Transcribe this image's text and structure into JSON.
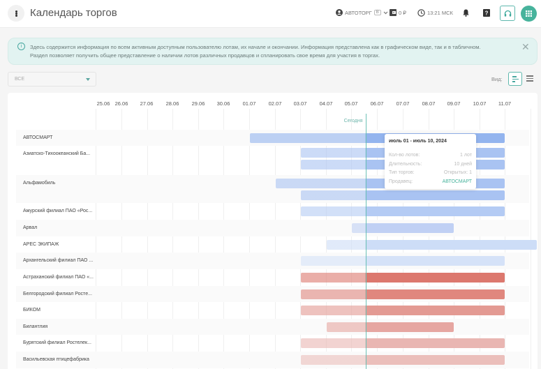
{
  "header": {
    "title": "Календарь торгов",
    "menu_icon": "more-vertical-icon",
    "account_label": "АВТОТОРГ",
    "account_badge": "В",
    "balance": "0 ₽",
    "time": "13:21 МСК",
    "icons": [
      "user-icon",
      "chevron-down-icon",
      "wallet-icon",
      "clock-icon",
      "bell-icon",
      "help-icon",
      "headset-icon",
      "apps-grid-icon"
    ]
  },
  "info": {
    "text_line1": "Здесь содержится информация по всем активным доступным пользователю лотам, их начале и окончании. Информация представлена как в графическом виде, так и в табличном.",
    "text_line2": "Раздел позволяет получить общее представление о наличии лотов различных продавцов и спланировать свое время для участия в торгах.",
    "close_icon": "close-icon"
  },
  "filter": {
    "selected": "ВСЕ"
  },
  "view": {
    "label": "Вид:",
    "options": [
      "gantt-view-icon",
      "list-view-icon"
    ]
  },
  "timeline": {
    "dates": [
      "25.06",
      "26.06",
      "27.06",
      "28.06",
      "29.06",
      "30.06",
      "01.07",
      "02.07",
      "03.07",
      "04.07",
      "05.07",
      "06.07",
      "07.07",
      "08.07",
      "09.07",
      "10.07",
      "11.07"
    ],
    "today_label": "Сегодня",
    "today": "05.07"
  },
  "rows": [
    {
      "seller": "АВТОСМАРТ",
      "bars": [
        {
          "start": "01.07",
          "end": "10.07",
          "color": "#93b4ee"
        }
      ]
    },
    {
      "seller": "Азиатско-Тихоокеанский Ба...",
      "bars": [
        {
          "start": "03.07",
          "end": "10.07",
          "color": "#a9c3f2"
        },
        {
          "start": "03.07",
          "end": "10.07",
          "color": "#a9c3f2"
        }
      ]
    },
    {
      "seller": "Альфамобиль",
      "bars": [
        {
          "start": "02.07",
          "end": "10.07",
          "color": "#a9c3f2"
        },
        {
          "start": "03.07",
          "end": "10.07",
          "color": "#a9c3f2"
        }
      ]
    },
    {
      "seller": "Амурский филиал ПАО «Рос...",
      "bars": [
        {
          "start": "03.07",
          "end": "10.07",
          "color": "#b4cbf4"
        }
      ]
    },
    {
      "seller": "Арвал",
      "bars": [
        {
          "start": "05.07",
          "end": "08.07",
          "color": "#c0d0f4"
        }
      ]
    },
    {
      "seller": "АРЕС ЭКИПАЖ",
      "bars": [
        {
          "start": "04.07",
          "end": "11.07",
          "color": "#cdddf7"
        }
      ]
    },
    {
      "seller": "Архангельский филиал ПАО ...",
      "bars": [
        {
          "start": "03.07",
          "end": "10.07",
          "color": "#d5e2f8"
        }
      ]
    },
    {
      "seller": "Астраханский филиал ПАО «...",
      "bars": [
        {
          "start": "03.07",
          "end": "10.07",
          "color": "#dc786e"
        }
      ]
    },
    {
      "seller": "Белгородский филиал Ростe...",
      "bars": [
        {
          "start": "03.07",
          "end": "10.07",
          "color": "#e0877e"
        }
      ]
    },
    {
      "seller": "БИКОМ",
      "bars": [
        {
          "start": "03.07",
          "end": "10.07",
          "color": "#e39a93"
        }
      ]
    },
    {
      "seller": "Билантлия",
      "bars": [
        {
          "start": "04.07",
          "end": "08.07",
          "color": "#e6a6a1"
        }
      ]
    },
    {
      "seller": "Бурятский филиал Ростелек...",
      "bars": [
        {
          "start": "03.07",
          "end": "10.07",
          "color": "#e9b6b2"
        }
      ]
    },
    {
      "seller": "Васильевская птицефабрика",
      "bars": [
        {
          "start": "03.07",
          "end": "10.07",
          "color": "#ebbfbb"
        }
      ]
    }
  ],
  "tooltip": {
    "title": "июль 01 - июль 10, 2024",
    "rows": [
      {
        "key": "Кол-во лотов:",
        "value": "1 лот"
      },
      {
        "key": "Длительность:",
        "value": "10 дней"
      },
      {
        "key": "Тип торгов:",
        "value": "Открытых: 1"
      },
      {
        "key": "Продавец:",
        "value": "АВТОСМАРТ"
      }
    ]
  },
  "colors": {
    "accent": "#47b39c",
    "info_bg": "#e2f3f1",
    "today_line": "#6cc1b6"
  }
}
